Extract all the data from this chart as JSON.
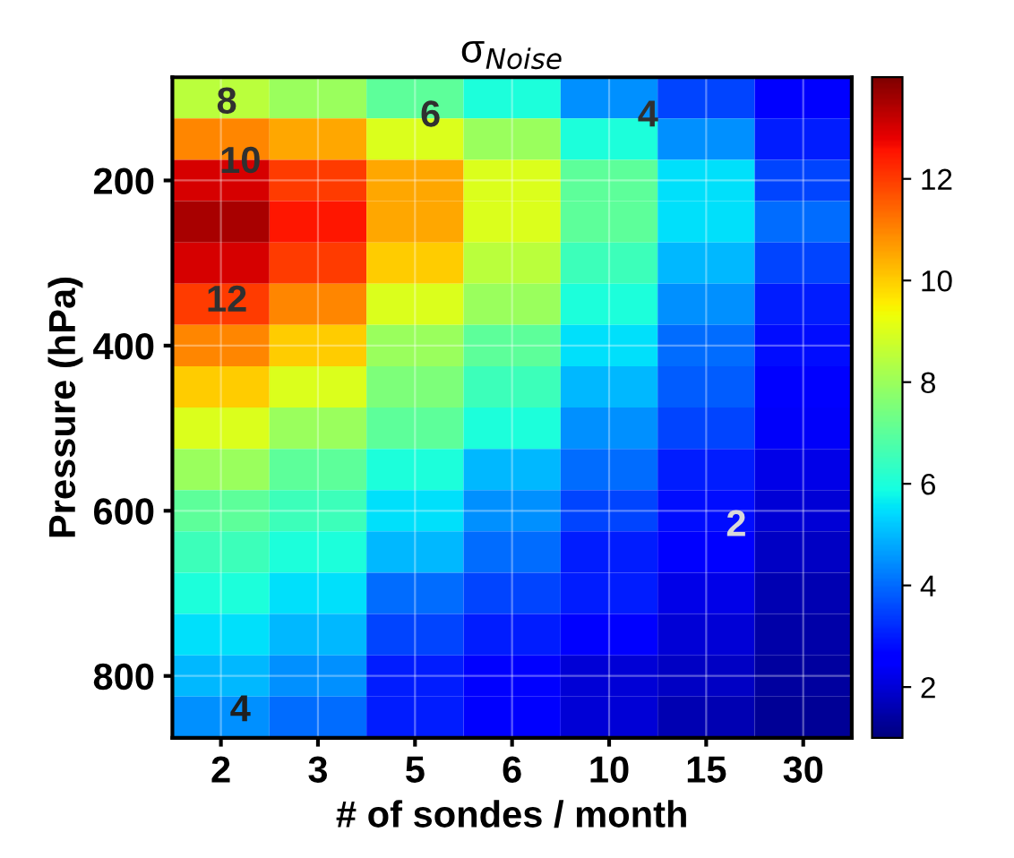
{
  "chart_data": {
    "type": "heatmap",
    "title": "σ$_{Noise}$",
    "xlabel": "# of sondes / month",
    "ylabel": "Pressure (hPa)",
    "categories": [
      "2",
      "3",
      "5",
      "6",
      "10",
      "15",
      "30"
    ],
    "y_categories": [
      null,
      null,
      "200",
      null,
      null,
      null,
      "400",
      null,
      null,
      null,
      "600",
      null,
      null,
      null,
      "800",
      null
    ],
    "clim": [
      1,
      14
    ],
    "cticks": [
      2,
      4,
      6,
      8,
      10,
      12
    ],
    "grid": true,
    "cells": [
      [
        8.5,
        8,
        7,
        6,
        4.5,
        3.5,
        2.5
      ],
      [
        11,
        10.5,
        9,
        8,
        6,
        4.5,
        3
      ],
      [
        13,
        12,
        10.5,
        9,
        7,
        5.5,
        3.5
      ],
      [
        13.5,
        12.5,
        10.5,
        9,
        7,
        5.5,
        4
      ],
      [
        13,
        12,
        10,
        8.5,
        6.5,
        5,
        3.5
      ],
      [
        12,
        11,
        9,
        8,
        6,
        4.5,
        3
      ],
      [
        11,
        10,
        8,
        7,
        5.5,
        4,
        2.8
      ],
      [
        10,
        9,
        7.5,
        6.5,
        5,
        3.8,
        2.6
      ],
      [
        9,
        8,
        7,
        6,
        4.5,
        3.5,
        2.4
      ],
      [
        8,
        7,
        6,
        5,
        4,
        3,
        2.2
      ],
      [
        7,
        6.5,
        5.5,
        4.5,
        3.5,
        2.8,
        2
      ],
      [
        6.5,
        6,
        5,
        4,
        3,
        2.5,
        1.8
      ],
      [
        6,
        5.5,
        4,
        3.5,
        3,
        2.2,
        1.6
      ],
      [
        5.5,
        5,
        3.5,
        3,
        2.5,
        2,
        1.5
      ],
      [
        5,
        4.5,
        3,
        2.5,
        2,
        1.8,
        1.4
      ],
      [
        4.5,
        4,
        3,
        2.5,
        2,
        1.6,
        1.3
      ]
    ],
    "annotations": [
      "8",
      "10",
      "12",
      "6",
      "4",
      "4",
      "2"
    ]
  }
}
